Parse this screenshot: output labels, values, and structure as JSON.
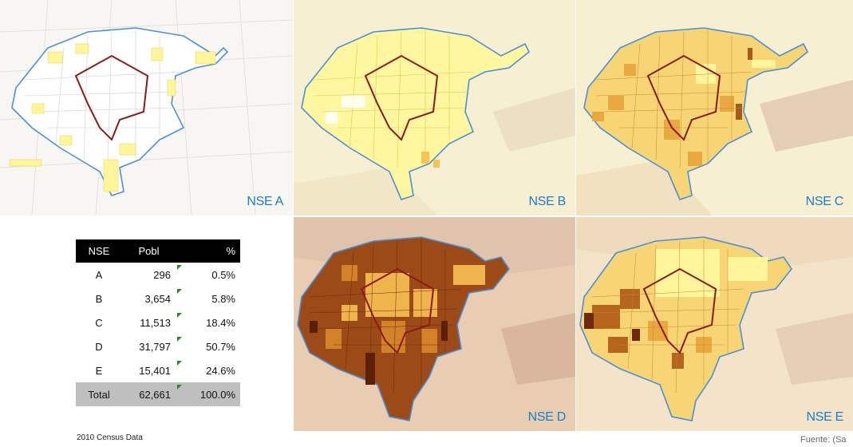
{
  "panels": {
    "a": {
      "label": "NSE A"
    },
    "b": {
      "label": "NSE B"
    },
    "c": {
      "label": "NSE C"
    },
    "d": {
      "label": "NSE D"
    },
    "e": {
      "label": "NSE E"
    }
  },
  "table": {
    "headers": [
      "NSE",
      "Pobl",
      "%"
    ],
    "rows": [
      {
        "nse": "A",
        "pobl": "296",
        "pct": "0.5%"
      },
      {
        "nse": "B",
        "pobl": "3,654",
        "pct": "5.8%"
      },
      {
        "nse": "C",
        "pobl": "11,513",
        "pct": "18.4%"
      },
      {
        "nse": "D",
        "pobl": "31,797",
        "pct": "50.7%"
      },
      {
        "nse": "E",
        "pobl": "15,401",
        "pct": "24.6%"
      }
    ],
    "total": {
      "nse": "Total",
      "pobl": "62,661",
      "pct": "100.0%"
    }
  },
  "footnote": "2010 Census Data",
  "source": "Fuente: (Sa",
  "colors": {
    "label": "#1a7fc4",
    "boundary": "#4a90d9",
    "center_outline": "#8b1a1a",
    "light": "#fff9a6",
    "mid": "#f5c452",
    "dark": "#b5651d",
    "darkest": "#6e2a0c",
    "flag": "#1d8f2a"
  }
}
